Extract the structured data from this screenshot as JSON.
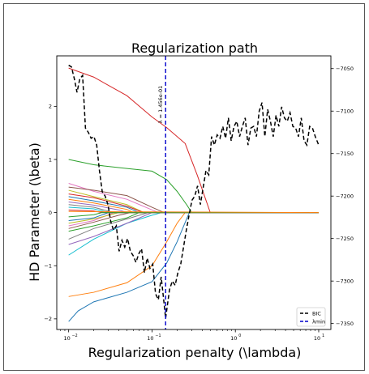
{
  "chart_data": {
    "type": "line",
    "title": "Regularization path",
    "xlabel": "Regularization penalty (\\lambda)",
    "ylabel": "HD Parameter (\\beta)",
    "x_scale": "log",
    "x_ticks": [
      0.01,
      0.1,
      1,
      10
    ],
    "x_tick_labels": [
      "10",
      "10",
      "10",
      "10"
    ],
    "x_tick_exponents": [
      "−2",
      "−1",
      "0",
      "1"
    ],
    "xlim": [
      0.0072,
      14
    ],
    "ylim": [
      -2.2,
      2.95
    ],
    "y_ticks": [
      -2,
      -1,
      0,
      1,
      2
    ],
    "y_tick_labels": [
      "−2",
      "−1",
      "0",
      "1",
      "2"
    ],
    "y2lim": [
      -7357,
      -7035
    ],
    "y2_ticks": [
      -7350,
      -7300,
      -7250,
      -7200,
      -7150,
      -7100,
      -7050
    ],
    "y2_tick_labels": [
      "−7350",
      "−7300",
      "−7250",
      "−7200",
      "−7150",
      "−7100",
      "−7050"
    ],
    "lambda_min": 0.1456,
    "lambda_min_label": "λ = 1.456e-01",
    "legend": {
      "placement": "bottom-right",
      "entries": [
        "BIC",
        "λmin"
      ]
    },
    "grid": false,
    "coef_paths": [
      {
        "color": "#d62728",
        "points": [
          [
            0.01,
            2.72
          ],
          [
            0.02,
            2.55
          ],
          [
            0.05,
            2.2
          ],
          [
            0.1,
            1.8
          ],
          [
            0.15,
            1.6
          ],
          [
            0.25,
            1.3
          ],
          [
            0.35,
            0.7
          ],
          [
            0.5,
            0.0
          ],
          [
            10,
            0.0
          ]
        ]
      },
      {
        "color": "#2ca02c",
        "points": [
          [
            0.01,
            1.0
          ],
          [
            0.02,
            0.9
          ],
          [
            0.05,
            0.83
          ],
          [
            0.1,
            0.78
          ],
          [
            0.15,
            0.62
          ],
          [
            0.2,
            0.4
          ],
          [
            0.26,
            0.15
          ],
          [
            0.3,
            0.0
          ],
          [
            10,
            0.0
          ]
        ]
      },
      {
        "color": "#ff7f0e",
        "points": [
          [
            0.01,
            -1.58
          ],
          [
            0.02,
            -1.5
          ],
          [
            0.05,
            -1.32
          ],
          [
            0.1,
            -1.0
          ],
          [
            0.15,
            -0.55
          ],
          [
            0.2,
            -0.2
          ],
          [
            0.25,
            0.0
          ],
          [
            10,
            0.0
          ]
        ]
      },
      {
        "color": "#1f77b4",
        "points": [
          [
            0.01,
            -2.05
          ],
          [
            0.013,
            -1.85
          ],
          [
            0.02,
            -1.68
          ],
          [
            0.05,
            -1.5
          ],
          [
            0.1,
            -1.3
          ],
          [
            0.15,
            -0.95
          ],
          [
            0.2,
            -0.55
          ],
          [
            0.28,
            0.0
          ],
          [
            10,
            0.0
          ]
        ]
      },
      {
        "color": "#17becf",
        "points": [
          [
            0.01,
            -0.8
          ],
          [
            0.02,
            -0.5
          ],
          [
            0.05,
            -0.2
          ],
          [
            0.1,
            -0.05
          ],
          [
            0.13,
            0.0
          ],
          [
            10,
            0.0
          ]
        ]
      },
      {
        "color": "#e377c2",
        "points": [
          [
            0.01,
            0.55
          ],
          [
            0.02,
            0.4
          ],
          [
            0.05,
            0.25
          ],
          [
            0.1,
            0.05
          ],
          [
            0.12,
            0.0
          ],
          [
            10,
            0.0
          ]
        ]
      },
      {
        "color": "#8c564b",
        "points": [
          [
            0.01,
            0.48
          ],
          [
            0.02,
            0.42
          ],
          [
            0.05,
            0.32
          ],
          [
            0.1,
            0.1
          ],
          [
            0.14,
            0.0
          ],
          [
            10,
            0.0
          ]
        ]
      },
      {
        "color": "#9467bd",
        "points": [
          [
            0.01,
            -0.6
          ],
          [
            0.02,
            -0.45
          ],
          [
            0.05,
            -0.2
          ],
          [
            0.1,
            0.0
          ],
          [
            10,
            0.0
          ]
        ]
      },
      {
        "color": "#7f7f7f",
        "points": [
          [
            0.01,
            -0.5
          ],
          [
            0.02,
            -0.3
          ],
          [
            0.05,
            -0.12
          ],
          [
            0.09,
            0.0
          ],
          [
            10,
            0.0
          ]
        ]
      },
      {
        "color": "#bcbd22",
        "points": [
          [
            0.01,
            0.42
          ],
          [
            0.02,
            0.3
          ],
          [
            0.05,
            0.15
          ],
          [
            0.08,
            0.0
          ],
          [
            10,
            0.0
          ]
        ]
      },
      {
        "color": "#d62728",
        "points": [
          [
            0.01,
            0.35
          ],
          [
            0.02,
            0.28
          ],
          [
            0.05,
            0.12
          ],
          [
            0.08,
            0.0
          ],
          [
            10,
            0.0
          ]
        ]
      },
      {
        "color": "#1f77b4",
        "points": [
          [
            0.01,
            0.3
          ],
          [
            0.02,
            0.22
          ],
          [
            0.05,
            0.1
          ],
          [
            0.07,
            0.0
          ],
          [
            10,
            0.0
          ]
        ]
      },
      {
        "color": "#ff7f0e",
        "points": [
          [
            0.01,
            0.25
          ],
          [
            0.02,
            0.18
          ],
          [
            0.05,
            0.06
          ],
          [
            0.06,
            0.0
          ],
          [
            10,
            0.0
          ]
        ]
      },
      {
        "color": "#2ca02c",
        "points": [
          [
            0.01,
            -0.35
          ],
          [
            0.02,
            -0.25
          ],
          [
            0.05,
            -0.1
          ],
          [
            0.07,
            0.0
          ],
          [
            10,
            0.0
          ]
        ]
      },
      {
        "color": "#9467bd",
        "points": [
          [
            0.01,
            0.2
          ],
          [
            0.02,
            0.14
          ],
          [
            0.04,
            0.05
          ],
          [
            0.05,
            0.0
          ],
          [
            10,
            0.0
          ]
        ]
      },
      {
        "color": "#8c564b",
        "points": [
          [
            0.01,
            -0.3
          ],
          [
            0.02,
            -0.18
          ],
          [
            0.04,
            -0.05
          ],
          [
            0.055,
            0.0
          ],
          [
            10,
            0.0
          ]
        ]
      },
      {
        "color": "#e377c2",
        "points": [
          [
            0.01,
            -0.25
          ],
          [
            0.02,
            -0.15
          ],
          [
            0.035,
            0.0
          ],
          [
            10,
            0.0
          ]
        ]
      },
      {
        "color": "#7f7f7f",
        "points": [
          [
            0.01,
            0.15
          ],
          [
            0.02,
            0.1
          ],
          [
            0.035,
            0.0
          ],
          [
            10,
            0.0
          ]
        ]
      },
      {
        "color": "#bcbd22",
        "points": [
          [
            0.01,
            -0.2
          ],
          [
            0.02,
            -0.12
          ],
          [
            0.04,
            0.0
          ],
          [
            10,
            0.0
          ]
        ]
      },
      {
        "color": "#17becf",
        "points": [
          [
            0.01,
            0.1
          ],
          [
            0.02,
            0.07
          ],
          [
            0.03,
            0.0
          ],
          [
            10,
            0.0
          ]
        ]
      },
      {
        "color": "#1f77b4",
        "points": [
          [
            0.01,
            -0.15
          ],
          [
            0.02,
            -0.1
          ],
          [
            0.03,
            0.0
          ],
          [
            10,
            0.0
          ]
        ]
      },
      {
        "color": "#d62728",
        "points": [
          [
            0.01,
            0.05
          ],
          [
            0.02,
            0.03
          ],
          [
            0.025,
            0.0
          ],
          [
            10,
            0.0
          ]
        ]
      },
      {
        "color": "#2ca02c",
        "points": [
          [
            0.01,
            -0.08
          ],
          [
            0.02,
            -0.04
          ],
          [
            0.025,
            0.0
          ],
          [
            10,
            0.0
          ]
        ]
      },
      {
        "color": "#ff7f0e",
        "points": [
          [
            0.01,
            0.02
          ],
          [
            10,
            0.0
          ]
        ]
      }
    ],
    "bic_series": {
      "name": "BIC",
      "color": "#000000",
      "x": [
        0.01,
        0.0108,
        0.0117,
        0.0126,
        0.0136,
        0.0147,
        0.0159,
        0.0172,
        0.0186,
        0.0201,
        0.0217,
        0.0234,
        0.0253,
        0.0274,
        0.0296,
        0.032,
        0.0345,
        0.0373,
        0.0403,
        0.0436,
        0.0471,
        0.0509,
        0.055,
        0.0594,
        0.0642,
        0.0693,
        0.0749,
        0.081,
        0.0875,
        0.0945,
        0.102,
        0.1103,
        0.1192,
        0.1288,
        0.1391,
        0.1456,
        0.1623,
        0.1753,
        0.1894,
        0.2047,
        0.2212,
        0.239,
        0.2582,
        0.279,
        0.3015,
        0.3258,
        0.352,
        0.3803,
        0.4109,
        0.444,
        0.4797,
        0.5183,
        0.5601,
        0.6052,
        0.6539,
        0.7065,
        0.7634,
        0.8249,
        0.8913,
        0.963,
        1.0406,
        1.1243,
        1.2149,
        1.3127,
        1.4184,
        1.5326,
        1.656,
        1.7893,
        1.9334,
        2.0891,
        2.2573,
        2.4391,
        2.6355,
        2.8477,
        3.077,
        3.3248,
        3.5925,
        3.8818,
        4.1943,
        4.532,
        4.8969,
        5.2913,
        5.7173,
        6.1777,
        6.6751,
        7.2126,
        7.7934,
        8.421,
        9.0991,
        10.0
      ],
      "y": [
        -7046,
        -7048,
        -7062,
        -7078,
        -7062,
        -7058,
        -7120,
        -7125,
        -7132,
        -7130,
        -7140,
        -7170,
        -7195,
        -7200,
        -7210,
        -7230,
        -7240,
        -7235,
        -7265,
        -7252,
        -7260,
        -7250,
        -7265,
        -7270,
        -7278,
        -7268,
        -7262,
        -7290,
        -7273,
        -7285,
        -7280,
        -7315,
        -7322,
        -7295,
        -7325,
        -7344,
        -7310,
        -7300,
        -7305,
        -7290,
        -7280,
        -7260,
        -7240,
        -7222,
        -7205,
        -7200,
        -7188,
        -7210,
        -7190,
        -7170,
        -7175,
        -7130,
        -7140,
        -7128,
        -7132,
        -7118,
        -7132,
        -7108,
        -7135,
        -7118,
        -7112,
        -7130,
        -7118,
        -7108,
        -7140,
        -7120,
        -7118,
        -7130,
        -7100,
        -7090,
        -7130,
        -7098,
        -7112,
        -7130,
        -7105,
        -7118,
        -7095,
        -7108,
        -7112,
        -7102,
        -7118,
        -7120,
        -7130,
        -7108,
        -7135,
        -7140,
        -7118,
        -7120,
        -7130,
        -7140
      ]
    }
  }
}
